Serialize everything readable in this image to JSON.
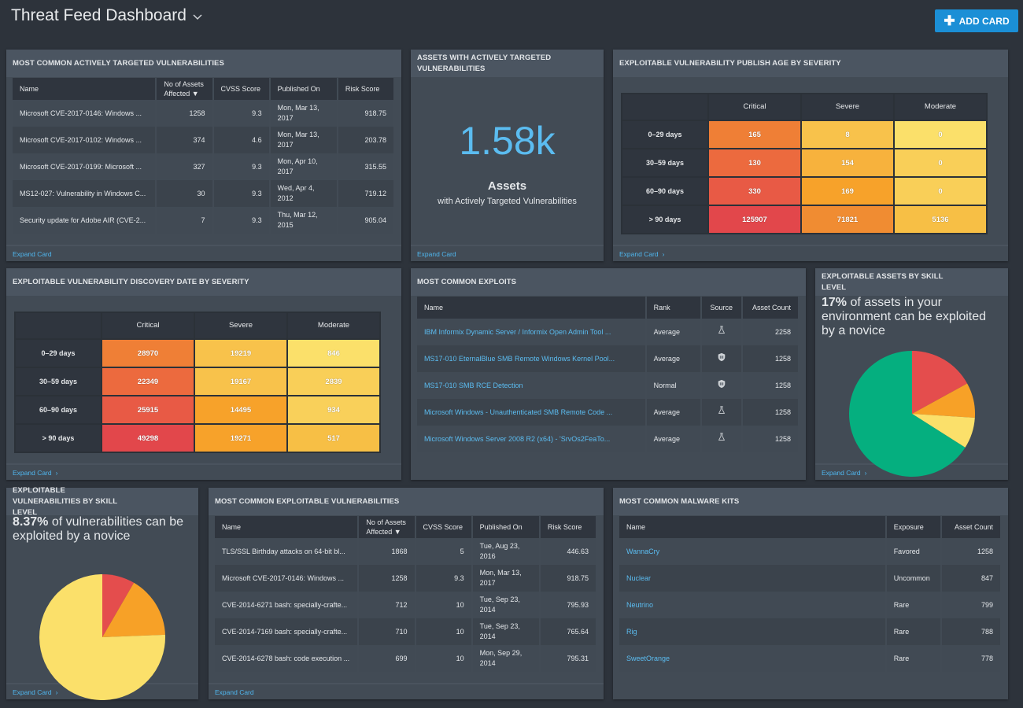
{
  "header": {
    "title": "Threat Feed Dashboard",
    "add_card": "ADD CARD"
  },
  "expand": "Expand Card",
  "colors": {
    "accent": "#1b8fd6",
    "link": "#5bbcf0",
    "critical": "#e24a4b",
    "severe": "#f7a22a",
    "moderate": "#f9dc6a",
    "safe": "#05af7f"
  },
  "cards": {
    "targeted": {
      "title": "Most Common Actively Targeted Vulnerabilities",
      "columns": [
        "Name",
        "No of Assets Affected ▼",
        "CVSS Score",
        "Published On",
        "Risk Score"
      ],
      "rows": [
        [
          "Microsoft CVE-2017-0146: Windows ...",
          "1258",
          "9.3",
          "Mon, Mar 13, 2017",
          "918.75"
        ],
        [
          "Microsoft CVE-2017-0102: Windows ...",
          "374",
          "4.6",
          "Mon, Mar 13, 2017",
          "203.78"
        ],
        [
          "Microsoft CVE-2017-0199: Microsoft ...",
          "327",
          "9.3",
          "Mon, Apr 10, 2017",
          "315.55"
        ],
        [
          "MS12-027: Vulnerability in Windows C...",
          "30",
          "9.3",
          "Wed, Apr 4, 2012",
          "719.12"
        ],
        [
          "Security update for Adobe AIR (CVE-2...",
          "7",
          "9.3",
          "Thu, Mar 12, 2015",
          "905.04"
        ]
      ]
    },
    "assets": {
      "title": "Assets with Actively Targeted Vulnerabilities",
      "value": "1.58k",
      "label": "Assets",
      "sublabel": "with Actively Targeted Vulnerabilities"
    },
    "publish_age": {
      "title": "Exploitable Vulnerability Publish Age by Severity",
      "columns": [
        "Critical",
        "Severe",
        "Moderate"
      ],
      "rows": [
        {
          "label": "0–29 days",
          "values": [
            "165",
            "8",
            "0"
          ],
          "colors": [
            "#ef7f36",
            "#f8c24b",
            "#fbe06a"
          ]
        },
        {
          "label": "30–59 days",
          "values": [
            "130",
            "154",
            "0"
          ],
          "colors": [
            "#ec6a3e",
            "#f7b23d",
            "#f9cf58"
          ]
        },
        {
          "label": "60–90 days",
          "values": [
            "330",
            "169",
            "0"
          ],
          "colors": [
            "#e85a45",
            "#f7a22a",
            "#f9cf58"
          ]
        },
        {
          "label": "> 90 days",
          "values": [
            "125907",
            "71821",
            "5136"
          ],
          "colors": [
            "#e2474b",
            "#f08c32",
            "#f7bf45"
          ]
        }
      ]
    },
    "discovery": {
      "title": "Exploitable Vulnerability Discovery Date by Severity",
      "columns": [
        "Critical",
        "Severe",
        "Moderate"
      ],
      "rows": [
        {
          "label": "0–29 days",
          "values": [
            "28970",
            "19219",
            "846"
          ],
          "colors": [
            "#ef7f36",
            "#f8c24b",
            "#fbe06a"
          ]
        },
        {
          "label": "30–59 days",
          "values": [
            "22349",
            "19167",
            "2839"
          ],
          "colors": [
            "#ec6a3e",
            "#f8c24b",
            "#f9cf58"
          ]
        },
        {
          "label": "60–90 days",
          "values": [
            "25915",
            "14495",
            "934"
          ],
          "colors": [
            "#e85a45",
            "#f7a22a",
            "#f9d05a"
          ]
        },
        {
          "label": "> 90 days",
          "values": [
            "49298",
            "19271",
            "517"
          ],
          "colors": [
            "#e2474b",
            "#f7a22a",
            "#f7bf45"
          ]
        }
      ]
    },
    "exploits": {
      "title": "Most Common Exploits",
      "columns": [
        "Name",
        "Rank",
        "Source",
        "Asset Count"
      ],
      "rows": [
        [
          "IBM Informix Dynamic Server / Informix Open Admin Tool ...",
          "Average",
          "flask-icon",
          "2258"
        ],
        [
          "MS17-010 EternalBlue SMB Remote Windows Kernel Pool...",
          "Average",
          "shield-icon",
          "1258"
        ],
        [
          "MS17-010 SMB RCE Detection",
          "Normal",
          "shield-icon",
          "1258"
        ],
        [
          "Microsoft Windows - Unauthenticated SMB Remote Code ...",
          "Average",
          "flask-icon",
          "1258"
        ],
        [
          "Microsoft Windows Server 2008 R2 (x64) - 'SrvOs2FeaTo...",
          "Average",
          "flask-icon",
          "1258"
        ]
      ]
    },
    "assets_skill": {
      "title": "Exploitable Assets by Skill Level",
      "pct": "17%",
      "text": "of assets in your environment can be exploited by a novice",
      "slices": [
        {
          "value": 17,
          "color": "#e44d4d"
        },
        {
          "value": 9,
          "color": "#f7a127"
        },
        {
          "value": 8,
          "color": "#fbe06a"
        },
        {
          "value": 66,
          "color": "#05af7f"
        }
      ]
    },
    "vuln_skill": {
      "title": "Exploitable Vulnerabilities by Skill Level",
      "pct": "8.37%",
      "text": "of vulnerabilities can be exploited by a novice",
      "slices": [
        {
          "value": 8.37,
          "color": "#e44d4d"
        },
        {
          "value": 16,
          "color": "#f7a127"
        },
        {
          "value": 75.63,
          "color": "#fbe06a"
        }
      ]
    },
    "exploitable": {
      "title": "Most Common Exploitable Vulnerabilities",
      "columns": [
        "Name",
        "No of Assets Affected ▼",
        "CVSS Score",
        "Published On",
        "Risk Score"
      ],
      "rows": [
        [
          "TLS/SSL Birthday attacks on 64-bit bl...",
          "1868",
          "5",
          "Tue, Aug 23, 2016",
          "446.63"
        ],
        [
          "Microsoft CVE-2017-0146: Windows ...",
          "1258",
          "9.3",
          "Mon, Mar 13, 2017",
          "918.75"
        ],
        [
          "CVE-2014-6271 bash: specially-crafte...",
          "712",
          "10",
          "Tue, Sep 23, 2014",
          "795.93"
        ],
        [
          "CVE-2014-7169 bash: specially-crafte...",
          "710",
          "10",
          "Tue, Sep 23, 2014",
          "765.64"
        ],
        [
          "CVE-2014-6278 bash: code execution ...",
          "699",
          "10",
          "Mon, Sep 29, 2014",
          "795.31"
        ]
      ]
    },
    "malware": {
      "title": "Most Common Malware Kits",
      "columns": [
        "Name",
        "Exposure",
        "Asset Count"
      ],
      "rows": [
        [
          "WannaCry",
          "Favored",
          "1258"
        ],
        [
          "Nuclear",
          "Uncommon",
          "847"
        ],
        [
          "Neutrino",
          "Rare",
          "799"
        ],
        [
          "Rig",
          "Rare",
          "788"
        ],
        [
          "SweetOrange",
          "Rare",
          "778"
        ]
      ]
    }
  }
}
